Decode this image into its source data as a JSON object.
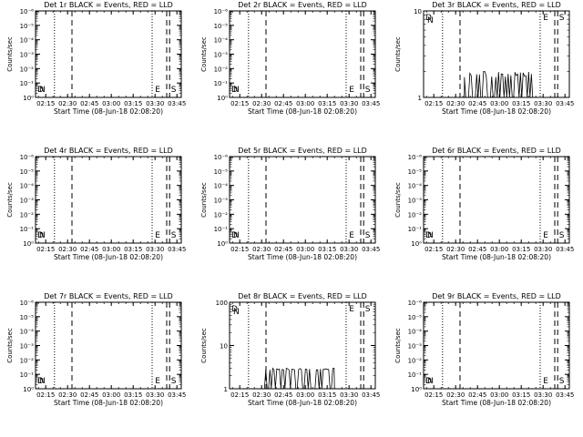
{
  "figure": {
    "background": "#ffffff",
    "ink": "#000000"
  },
  "chart_data": [
    {
      "type": "line",
      "title": "Det 1r BLACK = Events, RED = LLD",
      "xlabel": "Start Time (08-Jun-18 02:08:20)",
      "ylabel": "Counts/sec",
      "x_ticks": [
        "02:15",
        "02:30",
        "02:45",
        "03:00",
        "03:15",
        "03:30",
        "03:45"
      ],
      "y_scale": "log",
      "y_ticks": [
        "10⁰",
        "10⁻¹",
        "10⁻²",
        "10⁻³",
        "10⁻⁴",
        "10⁻⁵",
        "10⁻⁶"
      ],
      "ylim": [
        "10⁰",
        "10⁻⁶"
      ],
      "markers": [
        "D",
        "N",
        "E",
        "S"
      ],
      "series": []
    },
    {
      "type": "line",
      "title": "Det 2r BLACK = Events, RED = LLD",
      "xlabel": "Start Time (08-Jun-18 02:08:20)",
      "ylabel": "Counts/sec",
      "x_ticks": [
        "02:15",
        "02:30",
        "02:45",
        "03:00",
        "03:15",
        "03:30",
        "03:45"
      ],
      "y_scale": "log",
      "y_ticks": [
        "10⁰",
        "10⁻¹",
        "10⁻²",
        "10⁻³",
        "10⁻⁴",
        "10⁻⁵",
        "10⁻⁶"
      ],
      "ylim": [
        "10⁰",
        "10⁻⁶"
      ],
      "markers": [
        "D",
        "N",
        "E",
        "S"
      ],
      "series": []
    },
    {
      "type": "line",
      "title": "Det 3r BLACK = Events, RED = LLD",
      "xlabel": "Start Time (08-Jun-18 02:08:20)",
      "ylabel": "Counts/sec",
      "x_ticks": [
        "02:15",
        "02:30",
        "02:45",
        "03:00",
        "03:15",
        "03:30",
        "03:45"
      ],
      "y_scale": "log",
      "y_ticks": [
        "1",
        "10"
      ],
      "ylim": [
        1,
        10
      ],
      "markers": [
        "D",
        "N",
        "E",
        "S"
      ],
      "series": [
        {
          "kind": "burst",
          "x_range": [
            "02:36",
            "03:25"
          ],
          "level_low": 1,
          "level_high": 2
        }
      ]
    },
    {
      "type": "line",
      "title": "Det 4r BLACK = Events, RED = LLD",
      "xlabel": "Start Time (08-Jun-18 02:08:20)",
      "ylabel": "Counts/sec",
      "x_ticks": [
        "02:15",
        "02:30",
        "02:45",
        "03:00",
        "03:15",
        "03:30",
        "03:45"
      ],
      "y_scale": "log",
      "y_ticks": [
        "10⁰",
        "10⁻¹",
        "10⁻²",
        "10⁻³",
        "10⁻⁴",
        "10⁻⁵",
        "10⁻⁶"
      ],
      "ylim": [
        "10⁰",
        "10⁻⁶"
      ],
      "markers": [
        "D",
        "N",
        "E",
        "S"
      ],
      "series": []
    },
    {
      "type": "line",
      "title": "Det 5r BLACK = Events, RED = LLD",
      "xlabel": "Start Time (08-Jun-18 02:08:20)",
      "ylabel": "Counts/sec",
      "x_ticks": [
        "02:15",
        "02:30",
        "02:45",
        "03:00",
        "03:15",
        "03:30",
        "03:45"
      ],
      "y_scale": "log",
      "y_ticks": [
        "10⁰",
        "10⁻¹",
        "10⁻²",
        "10⁻³",
        "10⁻⁴",
        "10⁻⁵",
        "10⁻⁶"
      ],
      "ylim": [
        "10⁰",
        "10⁻⁶"
      ],
      "markers": [
        "D",
        "N",
        "E",
        "S"
      ],
      "series": []
    },
    {
      "type": "line",
      "title": "Det 6r BLACK = Events, RED = LLD",
      "xlabel": "Start Time (08-Jun-18 02:08:20)",
      "ylabel": "Counts/sec",
      "x_ticks": [
        "02:15",
        "02:30",
        "02:45",
        "03:00",
        "03:15",
        "03:30",
        "03:45"
      ],
      "y_scale": "log",
      "y_ticks": [
        "10⁰",
        "10⁻¹",
        "10⁻²",
        "10⁻³",
        "10⁻⁴",
        "10⁻⁵",
        "10⁻⁶"
      ],
      "ylim": [
        "10⁰",
        "10⁻⁶"
      ],
      "markers": [
        "D",
        "N",
        "E",
        "S"
      ],
      "series": []
    },
    {
      "type": "line",
      "title": "Det 7r BLACK = Events, RED = LLD",
      "xlabel": "Start Time (08-Jun-18 02:08:20)",
      "ylabel": "Counts/sec",
      "x_ticks": [
        "02:15",
        "02:30",
        "02:45",
        "03:00",
        "03:15",
        "03:30",
        "03:45"
      ],
      "y_scale": "log",
      "y_ticks": [
        "10⁰",
        "10⁻¹",
        "10⁻²",
        "10⁻³",
        "10⁻⁴",
        "10⁻⁵",
        "10⁻⁶"
      ],
      "ylim": [
        "10⁰",
        "10⁻⁶"
      ],
      "markers": [
        "D",
        "N",
        "E",
        "S"
      ],
      "series": []
    },
    {
      "type": "line",
      "title": "Det 8r BLACK = Events, RED = LLD",
      "xlabel": "Start Time (08-Jun-18 02:08:20)",
      "ylabel": "Counts/sec",
      "x_ticks": [
        "02:15",
        "02:30",
        "02:45",
        "03:00",
        "03:15",
        "03:30",
        "03:45"
      ],
      "y_scale": "log",
      "y_ticks": [
        "1",
        "10",
        "100"
      ],
      "ylim": [
        1,
        100
      ],
      "markers": [
        "D",
        "N",
        "E",
        "S"
      ],
      "series": [
        {
          "kind": "burst",
          "x_range": [
            "02:31",
            "03:20"
          ],
          "level_low": 1,
          "level_high": 3
        }
      ]
    },
    {
      "type": "line",
      "title": "Det 9r BLACK = Events, RED = LLD",
      "xlabel": "Start Time (08-Jun-18 02:08:20)",
      "ylabel": "Counts/sec",
      "x_ticks": [
        "02:15",
        "02:30",
        "02:45",
        "03:00",
        "03:15",
        "03:30",
        "03:45"
      ],
      "y_scale": "log",
      "y_ticks": [
        "10⁰",
        "10⁻¹",
        "10⁻²",
        "10⁻³",
        "10⁻⁴",
        "10⁻⁵",
        "10⁻⁶"
      ],
      "ylim": [
        "10⁰",
        "10⁻⁶"
      ],
      "markers": [
        "D",
        "N",
        "E",
        "S"
      ],
      "series": []
    }
  ]
}
